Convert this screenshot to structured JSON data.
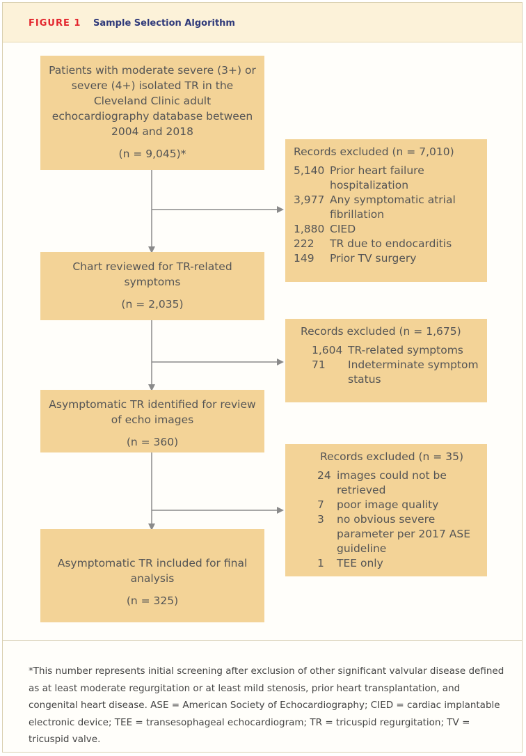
{
  "header": {
    "figure_label": "FIGURE 1",
    "figure_title": "Sample Selection Algorithm"
  },
  "main_boxes": [
    {
      "text": "Patients with moderate severe (3+) or severe (4+) isolated TR in the Cleveland Clinic adult echocardiography database between 2004 and 2018",
      "n": "(n = 9,045)*"
    },
    {
      "text": "Chart reviewed for TR-related symptoms",
      "n": "(n = 2,035)"
    },
    {
      "text": "Asymptomatic TR identified for review of echo images",
      "n": "(n = 360)"
    },
    {
      "text": "Asymptomatic TR included for final analysis",
      "n": "(n = 325)"
    }
  ],
  "exclusion_boxes": [
    {
      "title": "Records excluded (n = 7,010)",
      "rows": [
        {
          "num": "5,140",
          "text": "Prior heart failure hospitalization"
        },
        {
          "num": "3,977",
          "text": "Any symptomatic atrial fibrillation"
        },
        {
          "num": "1,880",
          "text": "CIED"
        },
        {
          "num": "222",
          "text": "TR due to endocarditis"
        },
        {
          "num": "149",
          "text": "Prior TV surgery"
        }
      ]
    },
    {
      "title": "Records excluded (n = 1,675)",
      "rows": [
        {
          "num": "1,604",
          "text": "TR-related symptoms"
        },
        {
          "num": "71",
          "text": "Indeterminate symptom status"
        }
      ]
    },
    {
      "title": "Records excluded (n = 35)",
      "rows": [
        {
          "num": "24",
          "text": "images could not be retrieved"
        },
        {
          "num": "7",
          "text": "poor image quality"
        },
        {
          "num": "3",
          "text": "no obvious severe parameter per 2017 ASE guideline"
        },
        {
          "num": "1",
          "text": "TEE only"
        }
      ]
    }
  ],
  "footnote": "*This number represents initial screening after exclusion of other significant valvular disease defined as at least moderate regurgitation or at least mild stenosis, prior heart transplantation, and congenital heart disease. ASE = American Society of Echocardiography; CIED = cardiac implantable electronic device; TEE = transesophageal echocardiogram; TR = tricuspid regurgitation; TV = tricuspid valve.",
  "colors": {
    "box_fill": "#f3d397",
    "arrow": "#8a8a8a",
    "figure_label": "#e3262e",
    "figure_title": "#2f3a7a",
    "header_bg": "#fcf2d9"
  }
}
